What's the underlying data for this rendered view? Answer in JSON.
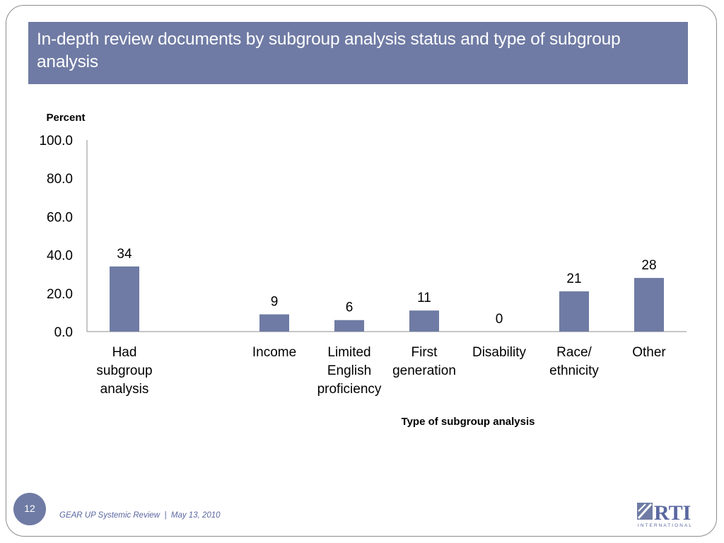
{
  "slide": {
    "title": "In-depth review documents by subgroup analysis status and type of subgroup analysis",
    "page_number": "12",
    "footer_left": "GEAR UP Systemic Review",
    "footer_separator": "|",
    "footer_date": "May 13, 2010",
    "logo_text": "RTI",
    "logo_subtext": "INTERNATIONAL",
    "accent_color": "#6f7ba4"
  },
  "chart_data": {
    "type": "bar",
    "title": "",
    "ylabel": "Percent",
    "xlabel": "Type of subgroup analysis",
    "ylim": [
      0,
      100
    ],
    "yticks": [
      "100.0",
      "80.0",
      "60.0",
      "40.0",
      "20.0",
      "0.0"
    ],
    "grid": false,
    "bar_color": "#6f7ba4",
    "categories": [
      [
        "Had",
        "subgroup",
        "analysis"
      ],
      [],
      [
        "Income"
      ],
      [
        "Limited",
        "English",
        "proficiency"
      ],
      [
        "First",
        "generation"
      ],
      [
        "Disability"
      ],
      [
        "Race/",
        "ethnicity"
      ],
      [
        "Other"
      ]
    ],
    "values": [
      34,
      null,
      9,
      6,
      11,
      0,
      21,
      28
    ]
  }
}
